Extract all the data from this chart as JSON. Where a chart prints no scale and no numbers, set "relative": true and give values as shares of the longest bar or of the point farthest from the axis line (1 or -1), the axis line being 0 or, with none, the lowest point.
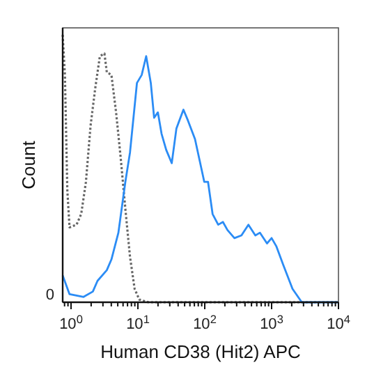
{
  "chart_data": {
    "type": "line",
    "xlabel": "Human CD38 (Hit2) APC",
    "ylabel": "Count",
    "relative": true,
    "annotations": [
      "0"
    ],
    "log": "x",
    "xlim": [
      0.75,
      10000
    ],
    "xticks": [
      {
        "value": 0.8,
        "label": null
      },
      {
        "value": 0.9,
        "label": null
      },
      {
        "value": 1,
        "label": "10$^{0}$"
      },
      {
        "value": 2,
        "label": null
      },
      {
        "value": 3,
        "label": null
      },
      {
        "value": 4,
        "label": null
      },
      {
        "value": 5,
        "label": null
      },
      {
        "value": 6,
        "label": null
      },
      {
        "value": 7,
        "label": null
      },
      {
        "value": 8,
        "label": null
      },
      {
        "value": 9,
        "label": null
      },
      {
        "value": 10,
        "label": "10$^{1}$"
      },
      {
        "value": 20,
        "label": null
      },
      {
        "value": 30,
        "label": null
      },
      {
        "value": 40,
        "label": null
      },
      {
        "value": 50,
        "label": null
      },
      {
        "value": 60,
        "label": null
      },
      {
        "value": 70,
        "label": null
      },
      {
        "value": 80,
        "label": null
      },
      {
        "value": 90,
        "label": null
      },
      {
        "value": 100,
        "label": "10$^{2}$"
      },
      {
        "value": 200,
        "label": null
      },
      {
        "value": 300,
        "label": null
      },
      {
        "value": 400,
        "label": null
      },
      {
        "value": 500,
        "label": null
      },
      {
        "value": 600,
        "label": null
      },
      {
        "value": 700,
        "label": null
      },
      {
        "value": 800,
        "label": null
      },
      {
        "value": 900,
        "label": null
      },
      {
        "value": 1000,
        "label": "10$^{3}$"
      },
      {
        "value": 2000,
        "label": null
      },
      {
        "value": 3000,
        "label": null
      },
      {
        "value": 4000,
        "label": null
      },
      {
        "value": 5000,
        "label": null
      },
      {
        "value": 6000,
        "label": null
      },
      {
        "value": 7000,
        "label": null
      },
      {
        "value": 8000,
        "label": null
      },
      {
        "value": 9000,
        "label": null
      },
      {
        "value": 10000,
        "label": "10$^{4}$"
      }
    ],
    "grid": false,
    "marker": "none",
    "series": [
      {
        "color": "#666666",
        "line_style": "dotted",
        "x": [
          0.75,
          0.81,
          0.88,
          0.95,
          1.21,
          1.42,
          1.67,
          1.96,
          2.3,
          2.7,
          3.16,
          3.43,
          4.02,
          4.72,
          5.53,
          6.49,
          7.62,
          8.94,
          10.5,
          14.4,
          9800
        ],
        "values": [
          1.0,
          0.85,
          0.42,
          0.28,
          0.29,
          0.33,
          0.45,
          0.66,
          0.8,
          0.92,
          0.93,
          0.86,
          0.85,
          0.71,
          0.54,
          0.35,
          0.17,
          0.05,
          0.01,
          0,
          0
        ]
      },
      {
        "color": "#2b8cf5",
        "line_style": "solid",
        "x": [
          0.75,
          0.95,
          1.54,
          2.12,
          2.49,
          3.43,
          4.02,
          5.11,
          6.49,
          7.62,
          9.68,
          11.4,
          13.3,
          15.6,
          17.5,
          19.9,
          22.6,
          26.5,
          32.1,
          37.7,
          48,
          56,
          71.5,
          83.9,
          98.4,
          112,
          131,
          159,
          187,
          219,
          278,
          354,
          450,
          571,
          670,
          853,
          1000,
          1173,
          1492,
          2054,
          2827,
          9800
        ],
        "values": [
          0.1,
          0.03,
          0.02,
          0.04,
          0.08,
          0.12,
          0.16,
          0.26,
          0.45,
          0.56,
          0.82,
          0.85,
          0.92,
          0.82,
          0.69,
          0.71,
          0.63,
          0.57,
          0.52,
          0.65,
          0.72,
          0.68,
          0.61,
          0.53,
          0.45,
          0.45,
          0.33,
          0.29,
          0.3,
          0.27,
          0.24,
          0.25,
          0.29,
          0.25,
          0.26,
          0.22,
          0.24,
          0.21,
          0.14,
          0.05,
          0,
          0
        ]
      }
    ]
  }
}
